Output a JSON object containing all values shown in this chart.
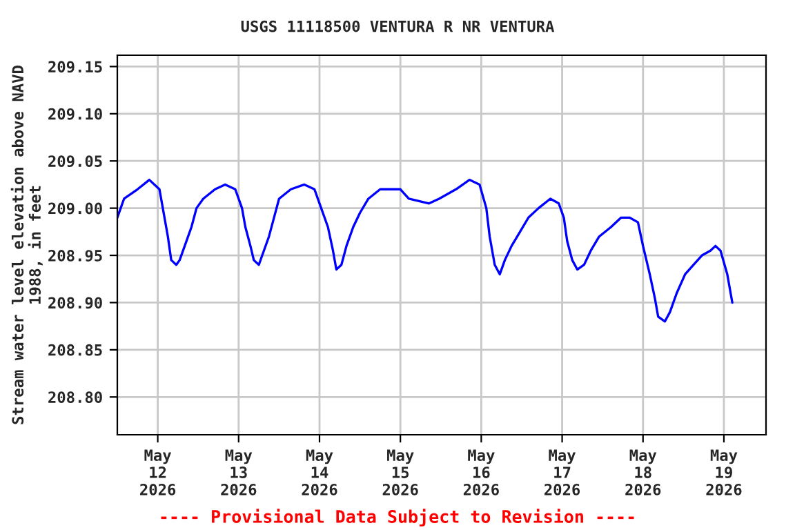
{
  "chart_data": {
    "type": "line",
    "title": "USGS 11118500 VENTURA R NR VENTURA",
    "ylabel": "Stream water level elevation above NAVD\n1988, in feet",
    "x": [
      "2026-05-11T12:00",
      "2026-05-11T14:00",
      "2026-05-11T18:00",
      "2026-05-11T21:30",
      "2026-05-12T00:30",
      "2026-05-12T01:30",
      "2026-05-12T03:00",
      "2026-05-12T04:00",
      "2026-05-12T05:30",
      "2026-05-12T06:30",
      "2026-05-12T08:00",
      "2026-05-12T10:00",
      "2026-05-12T11:30",
      "2026-05-12T13:30",
      "2026-05-12T17:00",
      "2026-05-12T20:00",
      "2026-05-12T23:00",
      "2026-05-13T01:00",
      "2026-05-13T02:00",
      "2026-05-13T03:30",
      "2026-05-13T04:30",
      "2026-05-13T06:00",
      "2026-05-13T07:00",
      "2026-05-13T09:00",
      "2026-05-13T10:30",
      "2026-05-13T12:00",
      "2026-05-13T15:30",
      "2026-05-13T19:30",
      "2026-05-13T22:30",
      "2026-05-14T00:30",
      "2026-05-14T02:30",
      "2026-05-14T04:00",
      "2026-05-14T05:00",
      "2026-05-14T06:30",
      "2026-05-14T08:00",
      "2026-05-14T10:00",
      "2026-05-14T12:00",
      "2026-05-14T14:30",
      "2026-05-14T18:00",
      "2026-05-15T00:00",
      "2026-05-15T02:30",
      "2026-05-15T08:30",
      "2026-05-15T11:30",
      "2026-05-15T16:30",
      "2026-05-15T20:30",
      "2026-05-15T23:30",
      "2026-05-16T01:30",
      "2026-05-16T02:30",
      "2026-05-16T04:00",
      "2026-05-16T05:30",
      "2026-05-16T07:00",
      "2026-05-16T09:00",
      "2026-05-16T11:30",
      "2026-05-16T14:00",
      "2026-05-16T17:00",
      "2026-05-16T20:30",
      "2026-05-16T23:00",
      "2026-05-17T00:30",
      "2026-05-17T01:30",
      "2026-05-17T03:00",
      "2026-05-17T04:30",
      "2026-05-17T06:30",
      "2026-05-17T08:30",
      "2026-05-17T11:00",
      "2026-05-17T14:30",
      "2026-05-17T17:30",
      "2026-05-17T20:00",
      "2026-05-17T22:30",
      "2026-05-18T00:00",
      "2026-05-18T02:00",
      "2026-05-18T03:30",
      "2026-05-18T04:30",
      "2026-05-18T06:30",
      "2026-05-18T08:00",
      "2026-05-18T10:00",
      "2026-05-18T12:30",
      "2026-05-18T15:00",
      "2026-05-18T17:30",
      "2026-05-18T20:00",
      "2026-05-18T21:30",
      "2026-05-18T23:00",
      "2026-05-19T01:00",
      "2026-05-19T02:30"
    ],
    "series": [
      {
        "color": "#0000ff",
        "values": [
          208.99,
          209.01,
          209.02,
          209.03,
          209.02,
          209.0,
          208.97,
          208.945,
          208.94,
          208.945,
          208.96,
          208.98,
          209.0,
          209.01,
          209.02,
          209.025,
          209.02,
          209.0,
          208.98,
          208.96,
          208.945,
          208.94,
          208.95,
          208.97,
          208.99,
          209.01,
          209.02,
          209.025,
          209.02,
          209.0,
          208.98,
          208.955,
          208.935,
          208.94,
          208.96,
          208.98,
          208.995,
          209.01,
          209.02,
          209.02,
          209.01,
          209.005,
          209.01,
          209.02,
          209.03,
          209.025,
          209.0,
          208.97,
          208.94,
          208.93,
          208.945,
          208.96,
          208.975,
          208.99,
          209.0,
          209.01,
          209.005,
          208.99,
          208.965,
          208.945,
          208.935,
          208.94,
          208.955,
          208.97,
          208.98,
          208.99,
          208.99,
          208.985,
          208.96,
          208.93,
          208.905,
          208.885,
          208.88,
          208.89,
          208.91,
          208.93,
          208.94,
          208.95,
          208.955,
          208.96,
          208.955,
          208.93,
          208.9
        ]
      }
    ],
    "xlim": [
      "2026-05-11T12:00",
      "2026-05-19T12:30"
    ],
    "xticks": [
      {
        "value": "2026-05-12",
        "label": "May\n12\n2026"
      },
      {
        "value": "2026-05-13",
        "label": "May\n13\n2026"
      },
      {
        "value": "2026-05-14",
        "label": "May\n14\n2026"
      },
      {
        "value": "2026-05-15",
        "label": "May\n15\n2026"
      },
      {
        "value": "2026-05-16",
        "label": "May\n16\n2026"
      },
      {
        "value": "2026-05-17",
        "label": "May\n17\n2026"
      },
      {
        "value": "2026-05-18",
        "label": "May\n18\n2026"
      },
      {
        "value": "2026-05-19",
        "label": "May\n19\n2026"
      }
    ],
    "ylim": [
      208.76,
      209.162
    ],
    "yticks": [
      {
        "value": 208.8,
        "label": "208.80"
      },
      {
        "value": 208.85,
        "label": "208.85"
      },
      {
        "value": 208.9,
        "label": "208.90"
      },
      {
        "value": 208.95,
        "label": "208.95"
      },
      {
        "value": 209.0,
        "label": "209.00"
      },
      {
        "value": 209.05,
        "label": "209.05"
      },
      {
        "value": 209.1,
        "label": "209.10"
      },
      {
        "value": 209.15,
        "label": "209.15"
      }
    ],
    "grid": true,
    "line_style": "solid",
    "marker": "none",
    "annotations": [
      "---- Provisional Data Subject to Revision ----"
    ]
  }
}
